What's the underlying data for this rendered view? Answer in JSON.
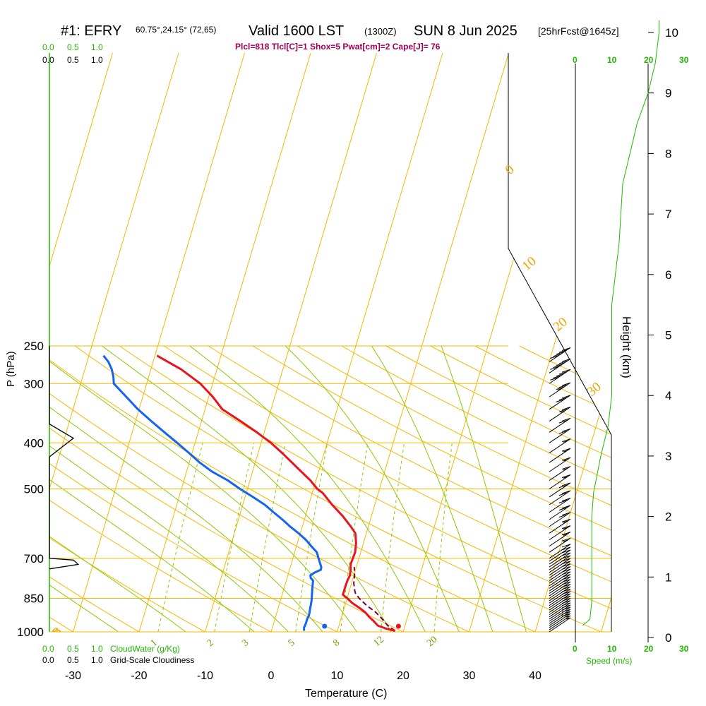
{
  "header": {
    "station": "#1: EFRY",
    "coords": "60.75°,24.15° (72,65)",
    "valid": "Valid 1600 LST",
    "utc": "(1300Z)",
    "date": "SUN 8 Jun 2025",
    "forecast": "[25hrFcst@1645z]",
    "indices": "Plcl=818 Tlcl[C]=1 Shox=5 Pwat[cm]=2 Cape[J]= 76"
  },
  "left_scale": {
    "top_green": [
      "0.0",
      "0.5",
      "1.0"
    ],
    "top_black": [
      "0.0",
      "0.5",
      "1.0"
    ],
    "bottom_green": [
      "0.0",
      "0.5",
      "1.0"
    ],
    "bottom_black": [
      "0.0",
      "0.5",
      "1.0"
    ],
    "cloudwater_label": "CloudWater (g/Kg)",
    "cloudiness_label": "Grid-Scale Cloudiness"
  },
  "speed_scale": {
    "top": [
      "0",
      "10",
      "20",
      "30"
    ],
    "bottom": [
      "0",
      "10",
      "20",
      "30"
    ],
    "label": "Speed (m/s)"
  },
  "colors": {
    "temperature": "#e8141e",
    "dewpoint": "#1464f0",
    "parcel": "#7a0040",
    "isotherm": "#f5b800",
    "dry_adiabat": "#f5b800",
    "moist_adiabat": "#8cc800",
    "mixing_ratio": "#8cc800",
    "wind_speed": "#22b800",
    "index_text": "#a0005a"
  },
  "chart_data": {
    "type": "line",
    "subtype": "skew-T log-p sounding",
    "xlabel": "Temperature (C)",
    "ylabel": "P (hPa)",
    "y2label": "Height (km)",
    "x_ticks": [
      -30,
      -20,
      -10,
      0,
      10,
      20,
      30,
      40
    ],
    "p_ticks": [
      1000,
      850,
      700,
      500,
      400,
      300,
      250
    ],
    "height_ticks": [
      0,
      1,
      2,
      3,
      4,
      5,
      6,
      7,
      8,
      9,
      10
    ],
    "isotherm_labels": [
      "10",
      "0",
      "-10",
      "-20",
      "-30"
    ],
    "dry_adiabat_labels": [
      "0",
      "10",
      "20",
      "30"
    ],
    "mixing_ratio_labels": [
      "1",
      "2",
      "3",
      "5",
      "8",
      "12",
      "20"
    ],
    "temperature": {
      "pressure": [
        995,
        985,
        970,
        950,
        930,
        910,
        890,
        870,
        850,
        835,
        818,
        800,
        780,
        760,
        740,
        720,
        700,
        680,
        650,
        620,
        600,
        570,
        540,
        510,
        500,
        480,
        450,
        420,
        400,
        380,
        360,
        340,
        320,
        300,
        280,
        262
      ],
      "value": [
        18.7,
        17.2,
        15.6,
        14.6,
        13.5,
        12.5,
        11.2,
        9.7,
        8.5,
        7.5,
        7.3,
        7.1,
        6.9,
        6.8,
        6.4,
        5.9,
        5.7,
        5.5,
        4.8,
        3.8,
        2.5,
        0.3,
        -2.3,
        -4.8,
        -6.0,
        -7.8,
        -11.1,
        -14.6,
        -17.2,
        -20.3,
        -23.8,
        -27.6,
        -30.2,
        -33.3,
        -37.5,
        -42.4
      ]
    },
    "dewpoint": {
      "pressure": [
        995,
        980,
        960,
        940,
        920,
        900,
        880,
        860,
        840,
        820,
        800,
        780,
        770,
        760,
        750,
        740,
        730,
        720,
        700,
        680,
        660,
        640,
        620,
        600,
        580,
        560,
        540,
        520,
        500,
        480,
        460,
        440,
        420,
        400,
        380,
        360,
        340,
        320,
        300,
        290,
        280,
        270,
        262
      ],
      "value": [
        4.9,
        4.6,
        4.5,
        4.3,
        4.2,
        3.9,
        3.6,
        3.3,
        2.9,
        2.5,
        2.1,
        1.7,
        1.1,
        0.8,
        1.2,
        1.9,
        1.7,
        1.3,
        0.5,
        -0.3,
        -1.7,
        -3.1,
        -4.8,
        -6.7,
        -8.5,
        -10.5,
        -12.5,
        -15.0,
        -17.7,
        -20.3,
        -23.5,
        -26.2,
        -28.7,
        -31.4,
        -34.3,
        -37.3,
        -40.4,
        -43.3,
        -46.4,
        -47.1,
        -48.0,
        -49.2,
        -50.5
      ]
    },
    "parcel": {
      "pressure": [
        995,
        970,
        940,
        910,
        880,
        850,
        830,
        818,
        790,
        760,
        730
      ],
      "value": [
        18.7,
        17.1,
        15.7,
        14.1,
        12.1,
        10.3,
        9.3,
        8.9,
        8.1,
        7.5,
        6.7
      ]
    },
    "surface_markers": {
      "temperature": 19.2,
      "dewpoint": 8.0
    },
    "wind": {
      "pressure": [
        1000,
        990,
        980,
        970,
        960,
        950,
        940,
        930,
        920,
        910,
        900,
        890,
        880,
        870,
        860,
        850,
        840,
        830,
        820,
        810,
        800,
        790,
        780,
        770,
        760,
        750,
        740,
        730,
        720,
        710,
        700,
        680,
        660,
        640,
        620,
        600,
        580,
        560,
        540,
        520,
        500,
        480,
        460,
        440,
        420,
        400,
        380,
        360,
        340,
        320,
        300,
        285,
        270
      ],
      "speed_ms": [
        3,
        4,
        5,
        5,
        5,
        6,
        6,
        6,
        6,
        6,
        6,
        6,
        6,
        6,
        6,
        6,
        6,
        6,
        6,
        6,
        6,
        6,
        6,
        6,
        6,
        6,
        6,
        6,
        6,
        7,
        7,
        8,
        8,
        9,
        9,
        10,
        10,
        10,
        10,
        10,
        9,
        9,
        8,
        8,
        8,
        10,
        12,
        14,
        16,
        18,
        25,
        27,
        26
      ]
    },
    "speed_profile": {
      "height_km": [
        0.2,
        0.3,
        0.6,
        1.0,
        1.5,
        2.0,
        2.4,
        3.0,
        3.5,
        4.0,
        4.5,
        5.0,
        5.5,
        6.0,
        6.5,
        7.0,
        7.5,
        8.0,
        8.5,
        9.0,
        9.5,
        10.0,
        10.2
      ],
      "speed_ms": [
        2.0,
        4.0,
        4.5,
        4.5,
        4.5,
        4.5,
        5.0,
        7.0,
        9.0,
        10.0,
        10.0,
        10.0,
        10.0,
        11.0,
        12.0,
        12.5,
        13.0,
        15.0,
        17.0,
        20.0,
        22.0,
        23.0,
        23.0
      ]
    },
    "cloudwater_profile": {
      "pressure": [
        250,
        345,
        365,
        391,
        428,
        700,
        706,
        721,
        737
      ],
      "value": [
        0.0,
        0.0,
        0.0,
        0.5,
        0.0,
        0.0,
        0.5,
        0.6,
        0.0
      ]
    },
    "grid": true
  }
}
